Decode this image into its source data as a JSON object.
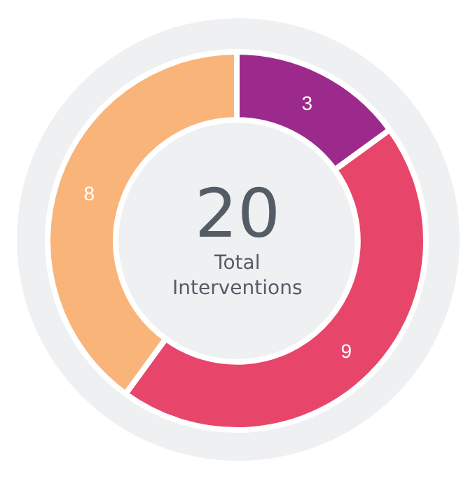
{
  "chart_data": {
    "type": "donut",
    "categories": [
      null,
      null,
      null
    ],
    "values": [
      3,
      9,
      8
    ],
    "colors": [
      "#9c2a8c",
      "#e8456b",
      "#f9b47a"
    ],
    "data_labels": true,
    "legend": false,
    "annotations": [
      "20",
      "Total Interventions"
    ]
  }
}
